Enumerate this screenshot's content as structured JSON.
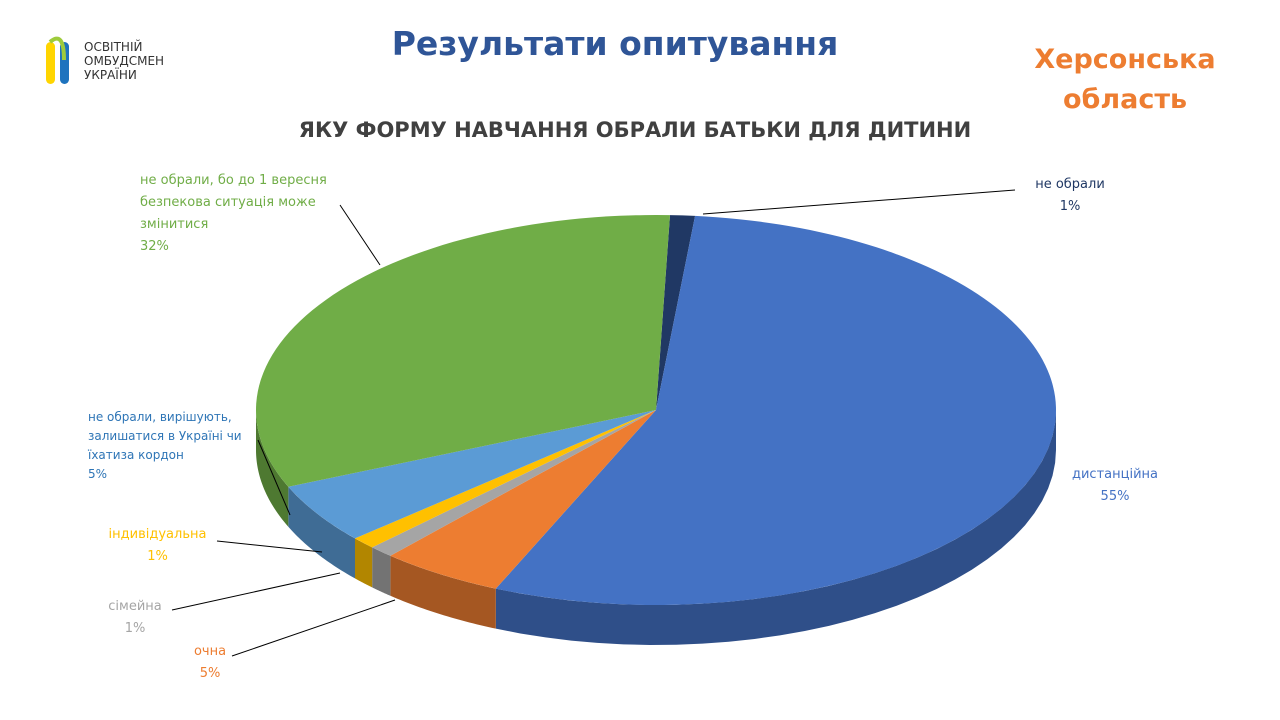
{
  "slide": {
    "heading": "Результати опитування",
    "region": "Херсонська область",
    "logo": [
      "ОСВІТНІЙ",
      "ОМБУДСМЕН",
      "УКРАЇНИ"
    ]
  },
  "chart_data": {
    "type": "pie",
    "title": "ЯКУ ФОРМУ НАВЧАННЯ ОБРАЛИ БАТЬКИ ДЛЯ ДИТИНИ",
    "categories": [
      "не обрали",
      "дистанційна",
      "очна",
      "сімейна",
      "індивідуальна",
      "не обрали, вирішують, залишатися в Україні чи їхатиза кордон",
      "не обрали, бо до 1 вересня безпекова ситуація може змінитися"
    ],
    "values": [
      1,
      55,
      5,
      1,
      1,
      5,
      32
    ],
    "value_labels": [
      "1%",
      "55%",
      "5%",
      "1%",
      "1%",
      "5%",
      "32%"
    ],
    "colors": [
      "#203864",
      "#4472c4",
      "#ed7d31",
      "#a5a5a5",
      "#ffc000",
      "#5b9bd5",
      "#70ad47"
    ]
  }
}
